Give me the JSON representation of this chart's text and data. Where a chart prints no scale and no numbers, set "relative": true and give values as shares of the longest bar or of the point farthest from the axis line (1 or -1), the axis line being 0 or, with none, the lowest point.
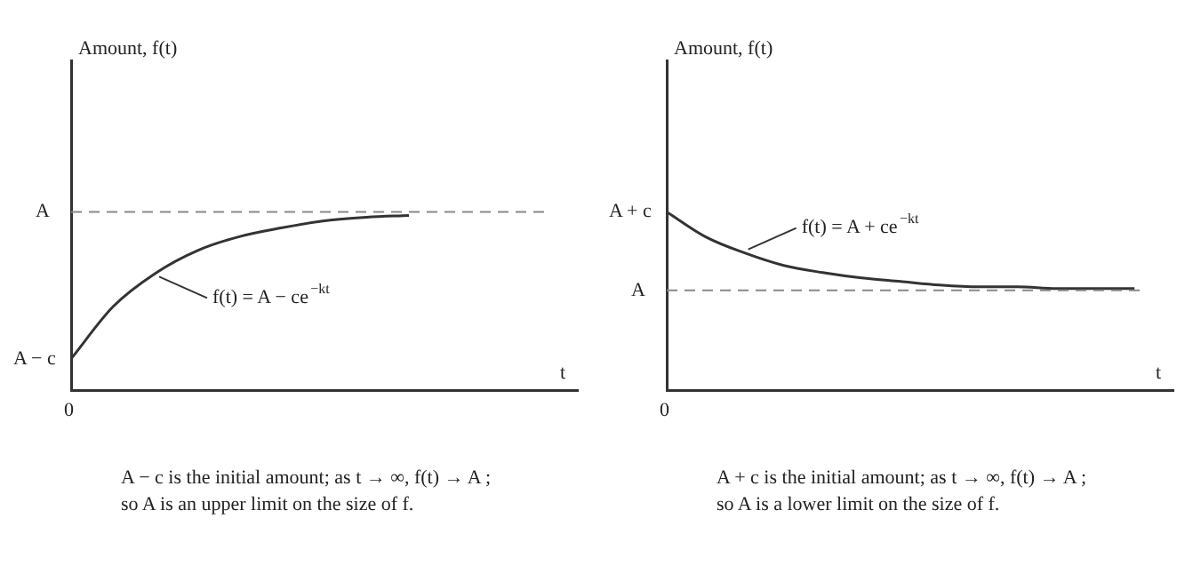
{
  "chart_data": [
    {
      "type": "line",
      "relative": true,
      "ylabel": "Amount, f(t)",
      "xlabel": "t",
      "categories": [
        null,
        null,
        null,
        null,
        null,
        null,
        null,
        null,
        null,
        null,
        null,
        null,
        null
      ],
      "series": [
        {
          "color": "#333333",
          "values": [
            0.18,
            0.48,
            0.67,
            0.8,
            0.88,
            0.93,
            0.97,
            0.99,
            1,
            null,
            null,
            null,
            null
          ]
        }
      ],
      "ref_lines": [
        {
          "axis": "y",
          "value": 1.02,
          "label": "A",
          "color": "#888888",
          "line_style": "dashed"
        }
      ],
      "annotations": [
        "A − c",
        "0",
        "f(t) = A − ce$^{−kt}$",
        "A − c is the initial amount; as t → ∞, f(t) → A ;",
        "so A is an upper limit on the size of f."
      ],
      "grid": false,
      "legend": false,
      "marker": "none",
      "line_style": "solid"
    },
    {
      "type": "line",
      "relative": true,
      "ylabel": "Amount, f(t)",
      "xlabel": "t",
      "categories": [
        null,
        null,
        null,
        null,
        null,
        null,
        null,
        null,
        null,
        null,
        null,
        null,
        null,
        null
      ],
      "series": [
        {
          "color": "#333333",
          "values": [
            1,
            0.86,
            0.77,
            0.7,
            0.66,
            0.63,
            0.61,
            0.59,
            0.58,
            0.58,
            0.57,
            0.57,
            0.57,
            null
          ]
        }
      ],
      "ref_lines": [
        {
          "axis": "y",
          "value": 0.56,
          "label": "A",
          "color": "#888888",
          "line_style": "dashed"
        }
      ],
      "annotations": [
        "A + c",
        "0",
        "f(t) = A + ce$^{−kt}$",
        "A + c is the initial amount; as t → ∞, f(t) → A ;",
        "so A is a lower limit on the size of f."
      ],
      "grid": false,
      "legend": false,
      "marker": "none",
      "line_style": "solid"
    }
  ]
}
